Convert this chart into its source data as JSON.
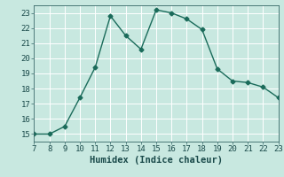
{
  "x": [
    7,
    8,
    9,
    10,
    11,
    12,
    13,
    14,
    15,
    16,
    17,
    18,
    19,
    20,
    21,
    22,
    23
  ],
  "y": [
    15.0,
    15.0,
    15.5,
    17.4,
    19.4,
    22.8,
    21.5,
    20.6,
    23.2,
    23.0,
    22.6,
    21.9,
    19.3,
    18.5,
    18.4,
    18.1,
    17.4
  ],
  "xlim": [
    7,
    23
  ],
  "ylim": [
    14.5,
    23.5
  ],
  "xticks": [
    7,
    8,
    9,
    10,
    11,
    12,
    13,
    14,
    15,
    16,
    17,
    18,
    19,
    20,
    21,
    22,
    23
  ],
  "yticks": [
    15,
    16,
    17,
    18,
    19,
    20,
    21,
    22,
    23
  ],
  "xlabel": "Humidex (Indice chaleur)",
  "line_color": "#1a6b5a",
  "marker": "D",
  "marker_size": 2.5,
  "bg_color": "#c8e8e0",
  "grid_color": "#ffffff",
  "tick_fontsize": 6.5,
  "xlabel_fontsize": 7.5
}
